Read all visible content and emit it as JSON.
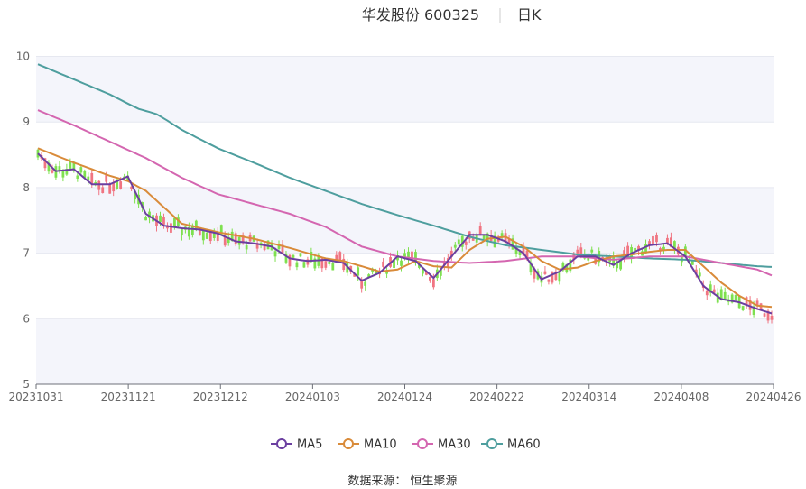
{
  "header": {
    "stock": "华发股份 600325",
    "period": "日K"
  },
  "source_label": "数据来源： 恒生聚源",
  "colors": {
    "up": "#f07582",
    "down": "#7ee04f",
    "MA5": "#6b3fa0",
    "MA10": "#d98b3a",
    "MA30": "#d466b0",
    "MA60": "#4e9e9e",
    "band": "#f4f5fb"
  },
  "chart_data": {
    "type": "candlestick",
    "title": "华发股份 600325",
    "subtitle": "日K",
    "ylim": [
      5,
      10
    ],
    "yticks": [
      "5",
      "6",
      "7",
      "8",
      "9",
      "10"
    ],
    "xticks": [
      "20231031",
      "20231121",
      "20231212",
      "20240103",
      "20240124",
      "20240222",
      "20240314",
      "20240408",
      "20240426"
    ],
    "legend": [
      "MA5",
      "MA10",
      "MA30",
      "MA60"
    ],
    "legend_position": "bottom",
    "ma_anchors": {
      "MA5": [
        [
          0,
          8.52
        ],
        [
          5,
          8.25
        ],
        [
          10,
          8.28
        ],
        [
          15,
          8.05
        ],
        [
          20,
          8.05
        ],
        [
          25,
          8.17
        ],
        [
          30,
          7.6
        ],
        [
          35,
          7.42
        ],
        [
          40,
          7.38
        ],
        [
          45,
          7.36
        ],
        [
          50,
          7.3
        ],
        [
          55,
          7.18
        ],
        [
          60,
          7.15
        ],
        [
          65,
          7.1
        ],
        [
          70,
          6.92
        ],
        [
          75,
          6.88
        ],
        [
          80,
          6.9
        ],
        [
          85,
          6.85
        ],
        [
          90,
          6.58
        ],
        [
          95,
          6.7
        ],
        [
          100,
          6.95
        ],
        [
          105,
          6.88
        ],
        [
          110,
          6.62
        ],
        [
          115,
          6.95
        ],
        [
          120,
          7.28
        ],
        [
          125,
          7.28
        ],
        [
          130,
          7.18
        ],
        [
          135,
          7.0
        ],
        [
          140,
          6.6
        ],
        [
          145,
          6.72
        ],
        [
          150,
          6.95
        ],
        [
          155,
          6.95
        ],
        [
          160,
          6.82
        ],
        [
          165,
          7.0
        ],
        [
          170,
          7.12
        ],
        [
          175,
          7.15
        ],
        [
          180,
          6.95
        ],
        [
          185,
          6.5
        ],
        [
          190,
          6.3
        ],
        [
          195,
          6.25
        ],
        [
          200,
          6.15
        ],
        [
          204,
          6.08
        ]
      ],
      "MA10": [
        [
          0,
          8.6
        ],
        [
          10,
          8.38
        ],
        [
          20,
          8.18
        ],
        [
          25,
          8.1
        ],
        [
          30,
          7.95
        ],
        [
          35,
          7.7
        ],
        [
          40,
          7.45
        ],
        [
          50,
          7.32
        ],
        [
          60,
          7.22
        ],
        [
          70,
          7.08
        ],
        [
          80,
          6.92
        ],
        [
          85,
          6.88
        ],
        [
          90,
          6.8
        ],
        [
          95,
          6.72
        ],
        [
          100,
          6.75
        ],
        [
          105,
          6.88
        ],
        [
          110,
          6.8
        ],
        [
          115,
          6.78
        ],
        [
          120,
          7.05
        ],
        [
          125,
          7.22
        ],
        [
          130,
          7.25
        ],
        [
          135,
          7.1
        ],
        [
          140,
          6.88
        ],
        [
          145,
          6.75
        ],
        [
          150,
          6.78
        ],
        [
          155,
          6.88
        ],
        [
          160,
          6.95
        ],
        [
          165,
          6.98
        ],
        [
          170,
          7.02
        ],
        [
          175,
          7.05
        ],
        [
          180,
          7.05
        ],
        [
          185,
          6.8
        ],
        [
          190,
          6.55
        ],
        [
          195,
          6.35
        ],
        [
          200,
          6.2
        ],
        [
          204,
          6.18
        ]
      ],
      "MA30": [
        [
          0,
          9.18
        ],
        [
          10,
          8.95
        ],
        [
          20,
          8.7
        ],
        [
          30,
          8.45
        ],
        [
          40,
          8.15
        ],
        [
          50,
          7.9
        ],
        [
          60,
          7.75
        ],
        [
          70,
          7.6
        ],
        [
          80,
          7.4
        ],
        [
          90,
          7.1
        ],
        [
          100,
          6.95
        ],
        [
          110,
          6.88
        ],
        [
          120,
          6.85
        ],
        [
          130,
          6.88
        ],
        [
          140,
          6.95
        ],
        [
          150,
          6.95
        ],
        [
          160,
          6.9
        ],
        [
          170,
          6.95
        ],
        [
          180,
          6.95
        ],
        [
          190,
          6.85
        ],
        [
          200,
          6.75
        ],
        [
          204,
          6.66
        ]
      ],
      "MA60": [
        [
          0,
          9.88
        ],
        [
          10,
          9.65
        ],
        [
          20,
          9.42
        ],
        [
          25,
          9.28
        ],
        [
          28,
          9.2
        ],
        [
          33,
          9.12
        ],
        [
          36,
          9.02
        ],
        [
          40,
          8.88
        ],
        [
          50,
          8.6
        ],
        [
          60,
          8.38
        ],
        [
          70,
          8.15
        ],
        [
          80,
          7.95
        ],
        [
          90,
          7.75
        ],
        [
          100,
          7.58
        ],
        [
          110,
          7.42
        ],
        [
          120,
          7.25
        ],
        [
          130,
          7.12
        ],
        [
          140,
          7.05
        ],
        [
          150,
          6.98
        ],
        [
          160,
          6.95
        ],
        [
          170,
          6.92
        ],
        [
          180,
          6.9
        ],
        [
          190,
          6.85
        ],
        [
          200,
          6.8
        ],
        [
          204,
          6.79
        ]
      ]
    }
  }
}
